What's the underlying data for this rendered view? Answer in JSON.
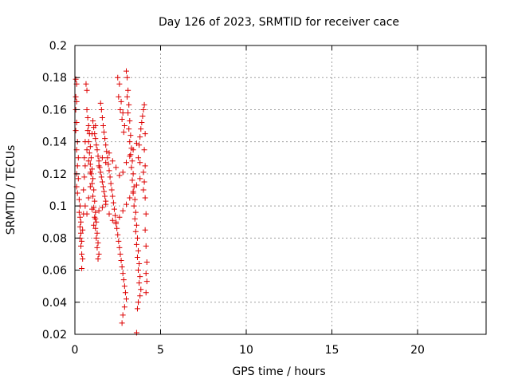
{
  "chart_data": {
    "type": "scatter",
    "title": "Day 126 of 2023, SRMTID for receiver cace",
    "xlabel": "GPS time / hours",
    "ylabel": "SRMTID / TECUs",
    "xlim": [
      0,
      24
    ],
    "ylim": [
      0.02,
      0.2
    ],
    "xticks": [
      0,
      5,
      10,
      15,
      20
    ],
    "xtick_labels": [
      "0",
      "5",
      "10",
      "15",
      "20"
    ],
    "yticks": [
      0.02,
      0.04,
      0.06,
      0.08,
      0.1,
      0.12,
      0.14,
      0.16,
      0.18,
      0.2
    ],
    "ytick_labels": [
      "0.02",
      "0.04",
      "0.06",
      "0.08",
      "0.1",
      "0.12",
      "0.14",
      "0.16",
      "0.18",
      "0.2"
    ],
    "grid": true,
    "marker": "plus",
    "color": "#dd0000",
    "series": [
      {
        "points": [
          [
            0.05,
            0.179
          ],
          [
            0.1,
            0.176
          ],
          [
            0.05,
            0.168
          ],
          [
            0.1,
            0.165
          ],
          [
            0.05,
            0.16
          ],
          [
            0.1,
            0.152
          ],
          [
            0.05,
            0.147
          ],
          [
            0.15,
            0.14
          ],
          [
            0.1,
            0.135
          ],
          [
            0.2,
            0.13
          ],
          [
            0.15,
            0.125
          ],
          [
            0.1,
            0.12
          ],
          [
            0.2,
            0.117
          ],
          [
            0.1,
            0.112
          ],
          [
            0.15,
            0.108
          ],
          [
            0.25,
            0.104
          ],
          [
            0.3,
            0.1
          ],
          [
            0.25,
            0.096
          ],
          [
            0.3,
            0.093
          ],
          [
            0.35,
            0.09
          ],
          [
            0.3,
            0.087
          ],
          [
            0.35,
            0.083
          ],
          [
            0.3,
            0.08
          ],
          [
            0.4,
            0.078
          ],
          [
            0.35,
            0.075
          ],
          [
            0.4,
            0.07
          ],
          [
            0.45,
            0.067
          ],
          [
            0.4,
            0.061
          ],
          [
            0.5,
            0.095
          ],
          [
            0.45,
            0.085
          ],
          [
            0.5,
            0.11
          ],
          [
            0.55,
            0.118
          ],
          [
            0.6,
            0.125
          ],
          [
            0.55,
            0.13
          ],
          [
            0.65,
            0.176
          ],
          [
            0.7,
            0.172
          ],
          [
            0.7,
            0.16
          ],
          [
            0.75,
            0.155
          ],
          [
            0.8,
            0.15
          ],
          [
            0.75,
            0.147
          ],
          [
            0.85,
            0.145
          ],
          [
            0.8,
            0.14
          ],
          [
            0.9,
            0.137
          ],
          [
            0.85,
            0.133
          ],
          [
            0.95,
            0.13
          ],
          [
            0.9,
            0.126
          ],
          [
            1.0,
            0.123
          ],
          [
            0.95,
            0.12
          ],
          [
            1.05,
            0.117
          ],
          [
            1.0,
            0.114
          ],
          [
            1.1,
            0.11
          ],
          [
            1.05,
            0.106
          ],
          [
            1.15,
            0.103
          ],
          [
            1.1,
            0.099
          ],
          [
            1.2,
            0.096
          ],
          [
            1.15,
            0.093
          ],
          [
            1.25,
            0.09
          ],
          [
            1.2,
            0.086
          ],
          [
            1.3,
            0.083
          ],
          [
            1.25,
            0.08
          ],
          [
            1.35,
            0.077
          ],
          [
            1.3,
            0.074
          ],
          [
            1.4,
            0.07
          ],
          [
            1.35,
            0.067
          ],
          [
            1.05,
            0.153
          ],
          [
            1.1,
            0.149
          ],
          [
            1.15,
            0.145
          ],
          [
            1.2,
            0.142
          ],
          [
            1.25,
            0.138
          ],
          [
            1.3,
            0.135
          ],
          [
            1.35,
            0.131
          ],
          [
            1.4,
            0.128
          ],
          [
            1.45,
            0.124
          ],
          [
            1.5,
            0.121
          ],
          [
            1.55,
            0.118
          ],
          [
            1.6,
            0.115
          ],
          [
            1.65,
            0.112
          ],
          [
            1.7,
            0.109
          ],
          [
            1.75,
            0.106
          ],
          [
            1.8,
            0.103
          ],
          [
            1.5,
            0.164
          ],
          [
            1.55,
            0.16
          ],
          [
            1.6,
            0.155
          ],
          [
            1.65,
            0.15
          ],
          [
            1.7,
            0.146
          ],
          [
            1.75,
            0.142
          ],
          [
            1.8,
            0.138
          ],
          [
            1.85,
            0.134
          ],
          [
            1.9,
            0.13
          ],
          [
            1.95,
            0.126
          ],
          [
            2.0,
            0.122
          ],
          [
            2.05,
            0.118
          ],
          [
            2.1,
            0.114
          ],
          [
            2.15,
            0.11
          ],
          [
            2.2,
            0.106
          ],
          [
            2.25,
            0.102
          ],
          [
            2.3,
            0.098
          ],
          [
            2.35,
            0.094
          ],
          [
            2.4,
            0.09
          ],
          [
            2.45,
            0.086
          ],
          [
            2.5,
            0.082
          ],
          [
            2.55,
            0.078
          ],
          [
            2.6,
            0.074
          ],
          [
            2.65,
            0.07
          ],
          [
            2.7,
            0.066
          ],
          [
            2.75,
            0.062
          ],
          [
            2.8,
            0.058
          ],
          [
            2.85,
            0.054
          ],
          [
            2.9,
            0.05
          ],
          [
            2.95,
            0.046
          ],
          [
            3.0,
            0.042
          ],
          [
            2.9,
            0.037
          ],
          [
            2.8,
            0.032
          ],
          [
            2.75,
            0.027
          ],
          [
            2.5,
            0.18
          ],
          [
            2.6,
            0.176
          ],
          [
            2.55,
            0.168
          ],
          [
            2.7,
            0.165
          ],
          [
            2.65,
            0.16
          ],
          [
            2.8,
            0.158
          ],
          [
            2.75,
            0.154
          ],
          [
            2.9,
            0.15
          ],
          [
            2.85,
            0.146
          ],
          [
            3.0,
            0.184
          ],
          [
            3.05,
            0.18
          ],
          [
            3.1,
            0.172
          ],
          [
            3.05,
            0.168
          ],
          [
            3.15,
            0.163
          ],
          [
            3.1,
            0.158
          ],
          [
            3.2,
            0.153
          ],
          [
            3.15,
            0.148
          ],
          [
            3.25,
            0.144
          ],
          [
            3.2,
            0.14
          ],
          [
            3.3,
            0.136
          ],
          [
            3.25,
            0.132
          ],
          [
            3.35,
            0.128
          ],
          [
            3.3,
            0.124
          ],
          [
            3.4,
            0.12
          ],
          [
            3.35,
            0.116
          ],
          [
            3.45,
            0.112
          ],
          [
            3.4,
            0.108
          ],
          [
            3.5,
            0.104
          ],
          [
            3.45,
            0.1
          ],
          [
            3.55,
            0.096
          ],
          [
            3.5,
            0.092
          ],
          [
            3.6,
            0.088
          ],
          [
            3.55,
            0.084
          ],
          [
            3.65,
            0.08
          ],
          [
            3.6,
            0.076
          ],
          [
            3.7,
            0.072
          ],
          [
            3.65,
            0.068
          ],
          [
            3.75,
            0.064
          ],
          [
            3.7,
            0.06
          ],
          [
            3.8,
            0.056
          ],
          [
            3.75,
            0.052
          ],
          [
            3.85,
            0.048
          ],
          [
            3.8,
            0.044
          ],
          [
            3.7,
            0.04
          ],
          [
            3.65,
            0.036
          ],
          [
            3.6,
            0.021
          ],
          [
            3.7,
            0.13
          ],
          [
            3.75,
            0.138
          ],
          [
            3.8,
            0.143
          ],
          [
            3.85,
            0.148
          ],
          [
            3.9,
            0.152
          ],
          [
            3.95,
            0.156
          ],
          [
            4.0,
            0.16
          ],
          [
            4.05,
            0.163
          ],
          [
            4.1,
            0.145
          ],
          [
            4.05,
            0.135
          ],
          [
            4.1,
            0.125
          ],
          [
            4.05,
            0.115
          ],
          [
            4.1,
            0.105
          ],
          [
            4.15,
            0.095
          ],
          [
            4.1,
            0.085
          ],
          [
            4.15,
            0.075
          ],
          [
            4.2,
            0.065
          ],
          [
            4.15,
            0.058
          ],
          [
            4.2,
            0.053
          ],
          [
            4.15,
            0.046
          ],
          [
            0.6,
            0.1
          ],
          [
            0.7,
            0.095
          ],
          [
            0.8,
            0.105
          ],
          [
            0.9,
            0.112
          ],
          [
            1.0,
            0.098
          ],
          [
            1.1,
            0.088
          ],
          [
            1.2,
            0.092
          ],
          [
            1.4,
            0.097
          ],
          [
            1.6,
            0.099
          ],
          [
            1.8,
            0.101
          ],
          [
            2.0,
            0.095
          ],
          [
            2.2,
            0.091
          ],
          [
            2.4,
            0.089
          ],
          [
            2.6,
            0.093
          ],
          [
            2.8,
            0.097
          ],
          [
            3.0,
            0.101
          ],
          [
            3.2,
            0.105
          ],
          [
            3.4,
            0.109
          ],
          [
            3.6,
            0.113
          ],
          [
            3.8,
            0.117
          ],
          [
            4.0,
            0.121
          ],
          [
            0.6,
            0.14
          ],
          [
            0.7,
            0.135
          ],
          [
            0.8,
            0.128
          ],
          [
            0.9,
            0.121
          ],
          [
            1.0,
            0.145
          ],
          [
            1.2,
            0.15
          ],
          [
            1.4,
            0.125
          ],
          [
            1.6,
            0.13
          ],
          [
            1.8,
            0.127
          ],
          [
            2.0,
            0.133
          ],
          [
            2.2,
            0.128
          ],
          [
            2.4,
            0.124
          ],
          [
            2.6,
            0.119
          ],
          [
            2.8,
            0.121
          ],
          [
            3.0,
            0.127
          ],
          [
            3.2,
            0.131
          ],
          [
            3.4,
            0.135
          ],
          [
            3.6,
            0.139
          ],
          [
            3.8,
            0.127
          ],
          [
            4.0,
            0.11
          ]
        ]
      }
    ]
  }
}
